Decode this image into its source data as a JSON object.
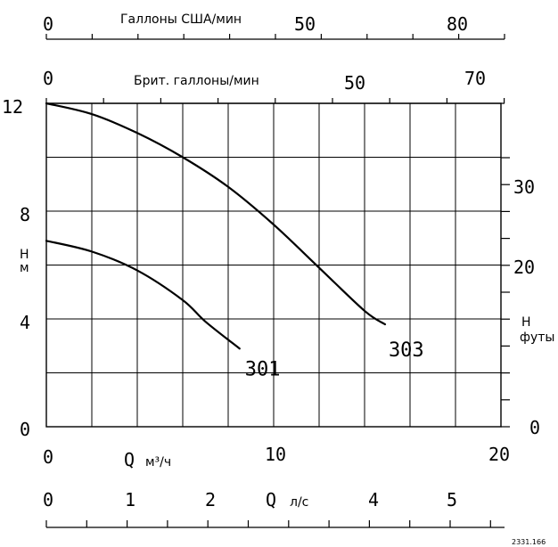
{
  "chart_data": {
    "type": "line",
    "x_unit": "м³/ч",
    "x_symbol": "Q",
    "xlim": [
      0,
      20
    ],
    "x_ticks": [
      "0",
      "10",
      "20"
    ],
    "x_grid_step": 2,
    "y_unit": "м",
    "y_symbol": "H",
    "ylim": [
      0,
      12
    ],
    "y_ticks": [
      "0",
      "4",
      "8",
      "12"
    ],
    "y_grid_step": 2,
    "grid": true,
    "series": [
      {
        "name": "301",
        "x": [
          0,
          2,
          4,
          6,
          7,
          8.5
        ],
        "y": [
          6.9,
          6.5,
          5.8,
          4.7,
          3.9,
          2.9
        ]
      },
      {
        "name": "303",
        "x": [
          0,
          2,
          4,
          6,
          8,
          10,
          12,
          14,
          14.9
        ],
        "y": [
          12,
          11.6,
          10.9,
          10.0,
          8.9,
          7.5,
          5.9,
          4.3,
          3.8
        ]
      }
    ],
    "secondary_axes": {
      "us_gpm": {
        "label": "Галлоны США/мин",
        "ticks": [
          "0",
          "50",
          "80"
        ]
      },
      "imp_gpm": {
        "label": "Брит. галлоны/мин",
        "ticks": [
          "0",
          "50",
          "70"
        ]
      },
      "feet": {
        "symbol": "H",
        "unit": "футы",
        "ticks": [
          "0",
          "20",
          "30"
        ]
      },
      "lps": {
        "symbol": "Q",
        "unit": "л/с",
        "ticks": [
          "0",
          "1",
          "2",
          "4",
          "5"
        ]
      }
    },
    "footnote": "2331.166"
  }
}
